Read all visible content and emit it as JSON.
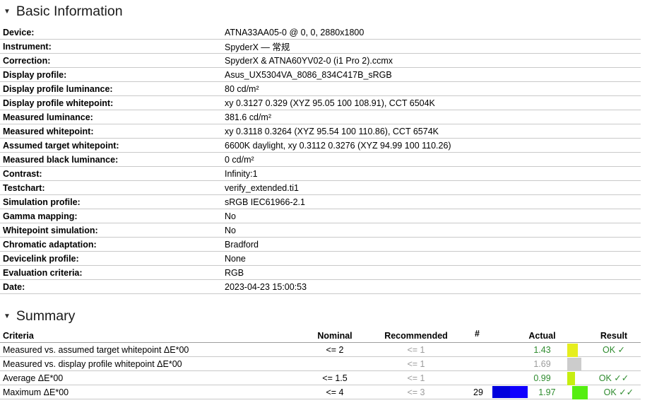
{
  "colors": {
    "pass_text": "#2e8b2e",
    "muted_text": "#9b9b9b",
    "row_border": "#c9c9c9",
    "header_border": "#9e9e9e"
  },
  "sections": {
    "basic_information": {
      "collapse_icon": "▼",
      "title": "Basic Information",
      "rows": [
        {
          "label": "Device:",
          "value": "ATNA33AA05-0 @ 0, 0, 2880x1800"
        },
        {
          "label": "Instrument:",
          "value": "SpyderX — 常规"
        },
        {
          "label": "Correction:",
          "value": "SpyderX & ATNA60YV02-0 (i1 Pro 2).ccmx"
        },
        {
          "label": "Display profile:",
          "value": "Asus_UX5304VA_8086_834C417B_sRGB"
        },
        {
          "label": "Display profile luminance:",
          "value": "80 cd/m²"
        },
        {
          "label": "Display profile whitepoint:",
          "value": "xy 0.3127 0.329 (XYZ 95.05 100 108.91), CCT 6504K"
        },
        {
          "label": "Measured luminance:",
          "value": "381.6 cd/m²"
        },
        {
          "label": "Measured whitepoint:",
          "value": "xy 0.3118 0.3264 (XYZ 95.54 100 110.86), CCT 6574K"
        },
        {
          "label": "Assumed target whitepoint:",
          "value": "6600K daylight, xy 0.3112 0.3276 (XYZ 94.99 100 110.26)"
        },
        {
          "label": "Measured black luminance:",
          "value": "0 cd/m²"
        },
        {
          "label": "Contrast:",
          "value": "Infinity:1"
        },
        {
          "label": "Testchart:",
          "value": "verify_extended.ti1"
        },
        {
          "label": "Simulation profile:",
          "value": "sRGB IEC61966-2.1"
        },
        {
          "label": "Gamma mapping:",
          "value": "No"
        },
        {
          "label": "Whitepoint simulation:",
          "value": "No"
        },
        {
          "label": "Chromatic adaptation:",
          "value": "Bradford"
        },
        {
          "label": "Devicelink profile:",
          "value": "None"
        },
        {
          "label": "Evaluation criteria:",
          "value": "RGB"
        },
        {
          "label": "Date:",
          "value": "2023-04-23 15:00:53"
        }
      ]
    },
    "summary": {
      "collapse_icon": "▼",
      "title": "Summary",
      "columns": {
        "criteria": "Criteria",
        "nominal": "Nominal",
        "recommended": "Recommended",
        "hash": "#",
        "actual": "Actual",
        "result": "Result"
      },
      "rows": [
        {
          "criteria": "Measured vs. assumed target whitepoint ΔE*00",
          "nominal": "<= 2",
          "recommended": "<= 1",
          "count": "",
          "actual": "1.43",
          "actual_color": "#2e8b2e",
          "swatch_color": "#e6ee1e",
          "swatch_width": 15,
          "result": "OK ✓",
          "result_color": "#2e8b2e"
        },
        {
          "criteria": "Measured vs. display profile whitepoint ΔE*00",
          "nominal": "",
          "recommended": "<= 1",
          "count": "",
          "actual": "1.69",
          "actual_color": "#9b9b9b",
          "swatch_color": "#cccccc",
          "swatch_width": 20,
          "result": "",
          "result_color": "#2e8b2e"
        },
        {
          "criteria": "Average ΔE*00",
          "nominal": "<= 1.5",
          "recommended": "<= 1",
          "count": "",
          "actual": "0.99",
          "actual_color": "#2e8b2e",
          "swatch_color": "#c6ee10",
          "swatch_width": 11,
          "result": "OK ✓✓",
          "result_color": "#2e8b2e"
        },
        {
          "criteria": "Maximum ΔE*00",
          "nominal": "<= 4",
          "recommended": "<= 3",
          "count": "29",
          "actual": "1.97",
          "actual_color": "#2e8b2e",
          "swatch_color": "#55ee11",
          "swatch_width": 22,
          "result": "OK ✓✓",
          "result_color": "#2e8b2e",
          "bar": [
            {
              "color": "#0000dd",
              "width": 25
            },
            {
              "color": "#1000ff",
              "width": 25
            }
          ]
        }
      ]
    }
  }
}
